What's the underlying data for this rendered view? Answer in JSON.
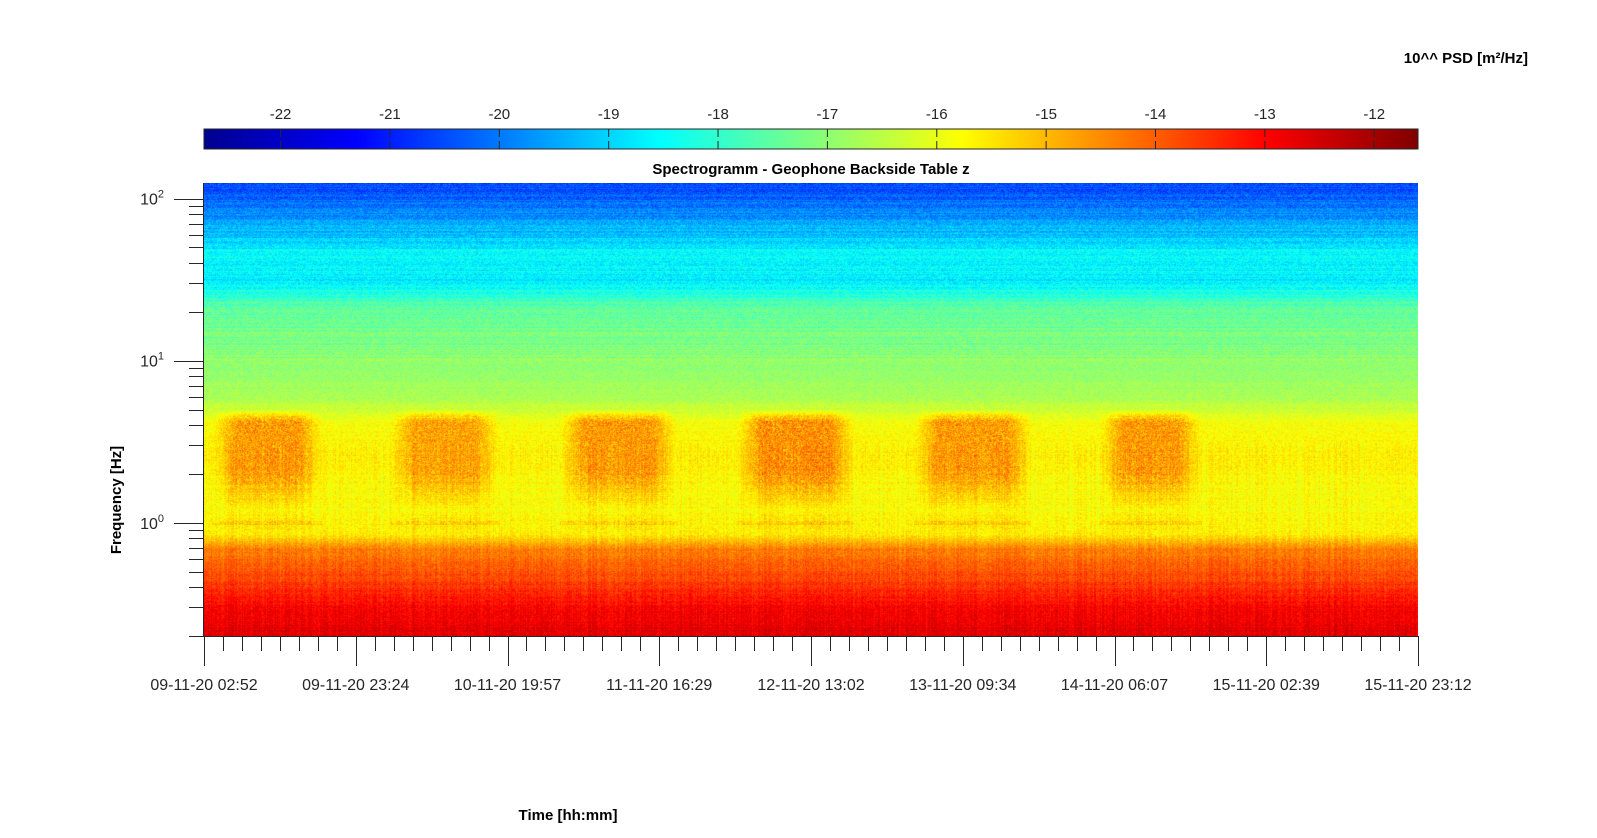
{
  "chart_data": {
    "type": "heatmap",
    "title": "Spectrogramm - Geophone Backside Table z",
    "xlabel": "Time [hh:mm]",
    "ylabel": "Frequency [Hz]",
    "x_ticklabels": [
      "09-11-20 02:52",
      "09-11-20 23:24",
      "10-11-20 19:57",
      "11-11-20 16:29",
      "12-11-20 13:02",
      "13-11-20 09:34",
      "14-11-20 06:07",
      "15-11-20 02:39",
      "15-11-20 23:12"
    ],
    "x_minor_ticks_per_interval": 8,
    "y_scale": "log",
    "ylim": [
      0.2,
      125
    ],
    "y_ticks": [
      {
        "value": 1,
        "base": "10",
        "exp": "0"
      },
      {
        "value": 10,
        "base": "10",
        "exp": "1"
      },
      {
        "value": 100,
        "base": "10",
        "exp": "2"
      }
    ],
    "colorbar": {
      "label": "10^^ PSD [m²/Hz]",
      "colormap": "jet",
      "location": "top",
      "range": [
        -22.7,
        -11.6
      ],
      "ticks": [
        -22,
        -21,
        -20,
        -19,
        -18,
        -17,
        -16,
        -15,
        -14,
        -13,
        -12
      ]
    },
    "psd_profile_log10": {
      "frequency_hz": [
        0.2,
        0.3,
        0.5,
        0.7,
        0.85,
        1.0,
        1.5,
        2.5,
        4.0,
        6.0,
        10,
        15,
        22,
        30,
        45,
        60,
        80,
        125
      ],
      "value": [
        -12.6,
        -13.0,
        -13.9,
        -14.4,
        -15.6,
        -15.7,
        -15.8,
        -15.6,
        -15.8,
        -16.7,
        -17.0,
        -17.3,
        -17.6,
        -18.7,
        -18.5,
        -19.2,
        -19.8,
        -20.6
      ]
    },
    "activity_periods": [
      {
        "start": "09-11-20 06:00",
        "end": "09-11-20 17:00",
        "peak_frequency_hz": [
          2,
          5
        ],
        "value": -14.6
      },
      {
        "start": "10-11-20 06:00",
        "end": "10-11-20 17:00",
        "peak_frequency_hz": [
          2,
          5
        ],
        "value": -14.7
      },
      {
        "start": "11-11-20 05:00",
        "end": "11-11-20 17:00",
        "peak_frequency_hz": [
          2,
          5
        ],
        "value": -14.6
      },
      {
        "start": "12-11-20 05:00",
        "end": "12-11-20 17:00",
        "peak_frequency_hz": [
          2,
          5
        ],
        "value": -14.5
      },
      {
        "start": "13-11-20 05:00",
        "end": "13-11-20 17:00",
        "peak_frequency_hz": [
          2,
          5
        ],
        "value": -14.6
      },
      {
        "start": "14-11-20 06:00",
        "end": "14-11-20 16:00",
        "peak_frequency_hz": [
          2,
          5
        ],
        "value": -14.6
      }
    ],
    "grid": false,
    "colors": {
      "axis": "#262626",
      "background": "#ffffff"
    }
  }
}
